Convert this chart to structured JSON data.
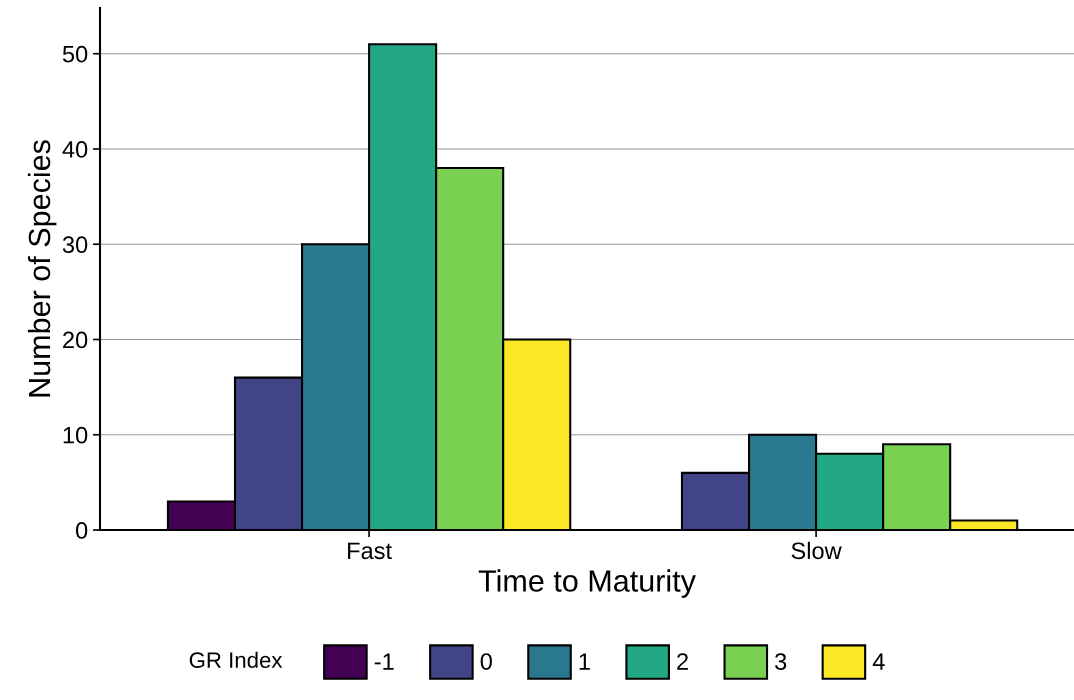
{
  "chart_data": {
    "type": "bar",
    "xlabel": "Time to Maturity",
    "ylabel": "Number of Species",
    "categories": [
      "Fast",
      "Slow"
    ],
    "series": [
      {
        "name": "-1",
        "color": "#440154",
        "values": [
          3,
          null
        ]
      },
      {
        "name": "0",
        "color": "#414487",
        "values": [
          16,
          6
        ]
      },
      {
        "name": "1",
        "color": "#2a788e",
        "values": [
          30,
          10
        ]
      },
      {
        "name": "2",
        "color": "#22a884",
        "values": [
          51,
          8
        ]
      },
      {
        "name": "3",
        "color": "#7ad151",
        "values": [
          38,
          9
        ]
      },
      {
        "name": "4",
        "color": "#fde725",
        "values": [
          20,
          1
        ]
      }
    ],
    "ylim": [
      0,
      54.8
    ],
    "yticks": [
      0,
      10,
      20,
      30,
      40,
      50
    ],
    "grid": "y",
    "legend": "bottom",
    "legend_title": "GR Index"
  }
}
